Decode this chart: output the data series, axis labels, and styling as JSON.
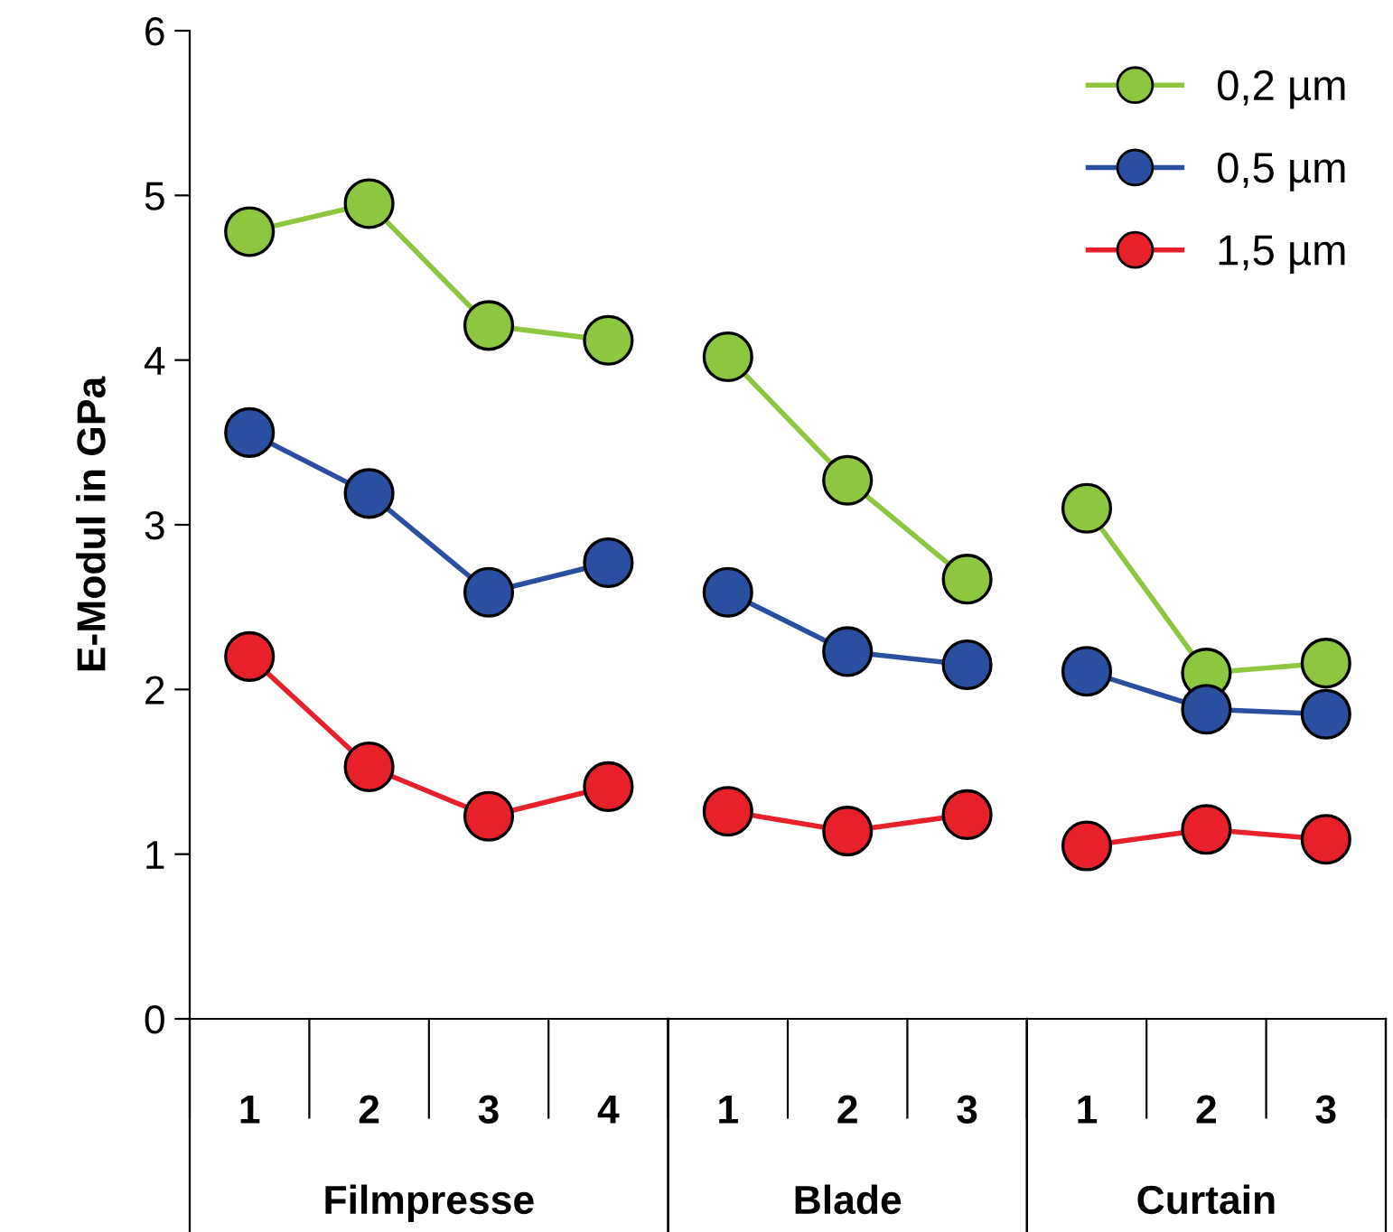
{
  "chart_data": {
    "type": "line",
    "ylabel": "E-Modul in GPa",
    "categories": [
      "1",
      "2",
      "3",
      "4",
      "1",
      "2",
      "3",
      "1",
      "2",
      "3"
    ],
    "series": [
      {
        "name": "0,2 µm",
        "color": "#8dc63f",
        "values": [
          4.78,
          4.95,
          4.21,
          4.12,
          null,
          null,
          null,
          null,
          null,
          null
        ]
      },
      {
        "name": "0,5 µm",
        "color": "#2a4fa0",
        "values": [
          3.56,
          3.19,
          2.59,
          2.77,
          null,
          null,
          null,
          null,
          null,
          null
        ]
      },
      {
        "name": "1,5 µm",
        "color": "#e8202a",
        "values": [
          2.2,
          1.53,
          1.23,
          1.41,
          null,
          null,
          null,
          null,
          null,
          null
        ]
      },
      {
        "color": "#8dc63f",
        "values": [
          null,
          null,
          null,
          null,
          4.02,
          3.27,
          2.67,
          null,
          null,
          null
        ]
      },
      {
        "color": "#2a4fa0",
        "values": [
          null,
          null,
          null,
          null,
          2.59,
          2.23,
          2.15,
          null,
          null,
          null
        ]
      },
      {
        "color": "#e8202a",
        "values": [
          null,
          null,
          null,
          null,
          1.26,
          1.14,
          1.24,
          null,
          null,
          null
        ]
      },
      {
        "color": "#8dc63f",
        "values": [
          null,
          null,
          null,
          null,
          null,
          null,
          null,
          3.1,
          2.1,
          2.16
        ]
      },
      {
        "color": "#2a4fa0",
        "values": [
          null,
          null,
          null,
          null,
          null,
          null,
          null,
          2.11,
          1.88,
          1.85
        ]
      },
      {
        "color": "#e8202a",
        "values": [
          null,
          null,
          null,
          null,
          null,
          null,
          null,
          1.05,
          1.15,
          1.09
        ]
      }
    ],
    "annotations": [
      "Filmpresse",
      "Blade",
      "Curtain"
    ],
    "ylim": [
      0,
      6
    ],
    "yticks": [
      0,
      1,
      2,
      3,
      4,
      5,
      6
    ],
    "grid": false,
    "legend": "top right",
    "marker": "circle",
    "line_style": "solid"
  }
}
